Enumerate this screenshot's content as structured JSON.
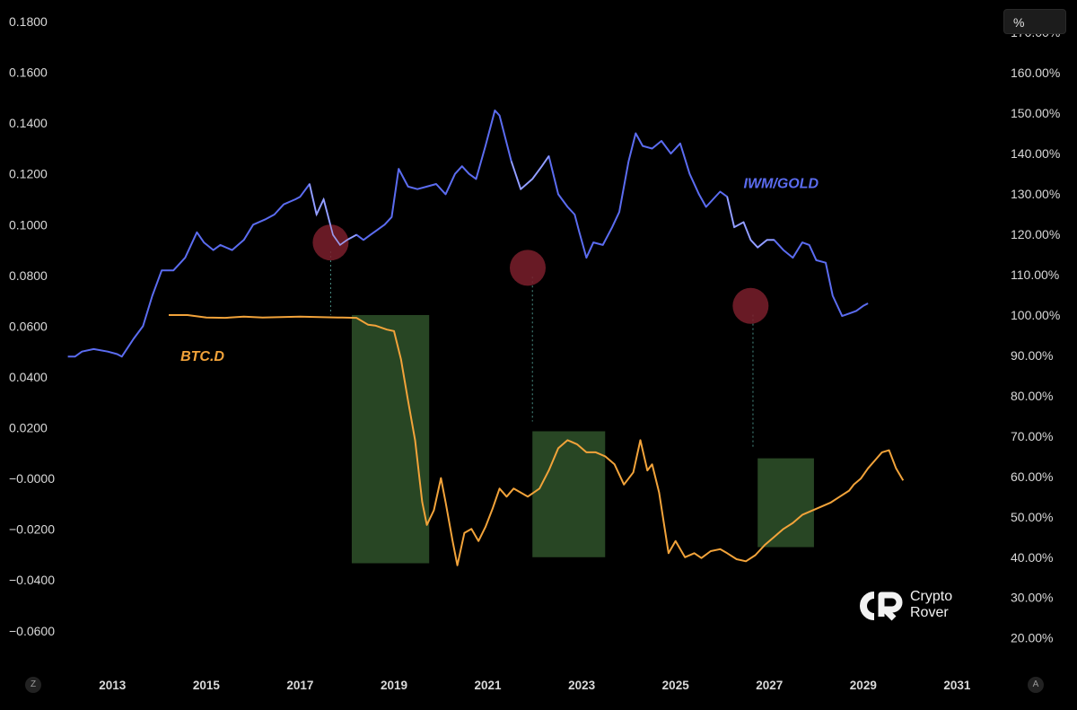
{
  "unit_button": {
    "label": "%"
  },
  "corner_buttons": {
    "left": "Z",
    "right": "A"
  },
  "watermark": {
    "line1": "Crypto",
    "line2": "Rover"
  },
  "colors": {
    "background": "#000000",
    "iwm_gold": "#5b6cf0",
    "btc_d": "#f2a33a",
    "highlight_zone": "#2a4a26",
    "marker_circle": "#7a1f2b",
    "guide_line": "#4a8f86"
  },
  "chart_data": {
    "type": "line",
    "grid": false,
    "x_axis": {
      "range": [
        2012.0,
        2031.7
      ],
      "ticks": [
        "2013",
        "2015",
        "2017",
        "2019",
        "2021",
        "2023",
        "2025",
        "2027",
        "2029",
        "2031"
      ]
    },
    "y_axis_left": {
      "range": [
        -0.0714,
        0.1878
      ],
      "ticks": [
        "0.1800",
        "0.1600",
        "0.1400",
        "0.1200",
        "0.1000",
        "0.0800",
        "0.0600",
        "0.0400",
        "0.0200",
        "−0.0000",
        "−0.0200",
        "−0.0400",
        "−0.0600"
      ]
    },
    "y_axis_right": {
      "unit": "%",
      "range": [
        14.6,
        177.6
      ],
      "ticks": [
        "170.00%",
        "160.00%",
        "150.00%",
        "140.00%",
        "130.00%",
        "120.00%",
        "110.00%",
        "100.00%",
        "90.00%",
        "80.00%",
        "70.00%",
        "60.00%",
        "50.00%",
        "40.00%",
        "30.00%",
        "20.00%"
      ]
    },
    "series": [
      {
        "name": "IWM/GOLD",
        "axis": "left",
        "points": [
          [
            2012.05,
            0.048
          ],
          [
            2012.2,
            0.048
          ],
          [
            2012.35,
            0.05
          ],
          [
            2012.6,
            0.051
          ],
          [
            2012.9,
            0.05
          ],
          [
            2013.1,
            0.049
          ],
          [
            2013.2,
            0.048
          ],
          [
            2013.45,
            0.055
          ],
          [
            2013.65,
            0.06
          ],
          [
            2013.85,
            0.072
          ],
          [
            2014.05,
            0.082
          ],
          [
            2014.3,
            0.082
          ],
          [
            2014.55,
            0.087
          ],
          [
            2014.8,
            0.097
          ],
          [
            2014.95,
            0.093
          ],
          [
            2015.15,
            0.09
          ],
          [
            2015.3,
            0.092
          ],
          [
            2015.55,
            0.09
          ],
          [
            2015.8,
            0.094
          ],
          [
            2016.0,
            0.1
          ],
          [
            2016.25,
            0.102
          ],
          [
            2016.45,
            0.104
          ],
          [
            2016.65,
            0.108
          ],
          [
            2016.9,
            0.11
          ],
          [
            2017.0,
            0.111
          ],
          [
            2017.2,
            0.116
          ],
          [
            2017.35,
            0.104
          ],
          [
            2017.5,
            0.11
          ],
          [
            2017.7,
            0.096
          ],
          [
            2017.85,
            0.092
          ],
          [
            2018.0,
            0.094
          ],
          [
            2018.2,
            0.096
          ],
          [
            2018.35,
            0.094
          ],
          [
            2018.5,
            0.096
          ],
          [
            2018.65,
            0.098
          ],
          [
            2018.8,
            0.1
          ],
          [
            2018.95,
            0.103
          ],
          [
            2019.1,
            0.122
          ],
          [
            2019.3,
            0.115
          ],
          [
            2019.5,
            0.114
          ],
          [
            2019.7,
            0.115
          ],
          [
            2019.9,
            0.116
          ],
          [
            2020.1,
            0.112
          ],
          [
            2020.3,
            0.12
          ],
          [
            2020.45,
            0.123
          ],
          [
            2020.6,
            0.12
          ],
          [
            2020.75,
            0.118
          ],
          [
            2020.95,
            0.131
          ],
          [
            2021.15,
            0.145
          ],
          [
            2021.25,
            0.143
          ],
          [
            2021.5,
            0.125
          ],
          [
            2021.7,
            0.114
          ],
          [
            2021.95,
            0.118
          ],
          [
            2022.15,
            0.123
          ],
          [
            2022.3,
            0.127
          ],
          [
            2022.5,
            0.112
          ],
          [
            2022.7,
            0.107
          ],
          [
            2022.85,
            0.104
          ],
          [
            2022.95,
            0.097
          ],
          [
            2023.1,
            0.087
          ],
          [
            2023.25,
            0.093
          ],
          [
            2023.45,
            0.092
          ],
          [
            2023.65,
            0.099
          ],
          [
            2023.8,
            0.105
          ],
          [
            2024.0,
            0.125
          ],
          [
            2024.15,
            0.136
          ],
          [
            2024.3,
            0.131
          ],
          [
            2024.5,
            0.13
          ],
          [
            2024.7,
            0.133
          ],
          [
            2024.9,
            0.128
          ],
          [
            2025.1,
            0.132
          ],
          [
            2025.3,
            0.12
          ],
          [
            2025.5,
            0.112
          ],
          [
            2025.65,
            0.107
          ],
          [
            2025.8,
            0.11
          ],
          [
            2025.95,
            0.113
          ],
          [
            2026.1,
            0.111
          ],
          [
            2026.25,
            0.099
          ],
          [
            2026.45,
            0.101
          ],
          [
            2026.6,
            0.094
          ],
          [
            2026.75,
            0.091
          ],
          [
            2026.95,
            0.094
          ],
          [
            2027.1,
            0.094
          ],
          [
            2027.3,
            0.09
          ],
          [
            2027.5,
            0.087
          ],
          [
            2027.7,
            0.093
          ],
          [
            2027.85,
            0.092
          ],
          [
            2028.0,
            0.086
          ],
          [
            2028.2,
            0.085
          ],
          [
            2028.35,
            0.072
          ],
          [
            2028.55,
            0.064
          ],
          [
            2028.7,
            0.065
          ],
          [
            2028.85,
            0.066
          ],
          [
            2029.0,
            0.068
          ],
          [
            2029.1,
            0.069
          ]
        ]
      },
      {
        "name": "BTC.D",
        "axis": "right",
        "points": [
          [
            2014.2,
            100.0
          ],
          [
            2014.6,
            100.0
          ],
          [
            2015.0,
            99.4
          ],
          [
            2015.4,
            99.3
          ],
          [
            2015.8,
            99.6
          ],
          [
            2016.2,
            99.4
          ],
          [
            2016.6,
            99.5
          ],
          [
            2017.0,
            99.6
          ],
          [
            2017.4,
            99.5
          ],
          [
            2017.8,
            99.4
          ],
          [
            2018.2,
            99.3
          ],
          [
            2018.45,
            97.6
          ],
          [
            2018.6,
            97.4
          ],
          [
            2018.85,
            96.4
          ],
          [
            2019.0,
            96.0
          ],
          [
            2019.15,
            89.0
          ],
          [
            2019.3,
            78.7
          ],
          [
            2019.45,
            69.0
          ],
          [
            2019.6,
            53.7
          ],
          [
            2019.7,
            48.0
          ],
          [
            2019.85,
            51.6
          ],
          [
            2020.0,
            59.6
          ],
          [
            2020.1,
            53.6
          ],
          [
            2020.25,
            44.0
          ],
          [
            2020.35,
            38.0
          ],
          [
            2020.5,
            46.0
          ],
          [
            2020.65,
            47.0
          ],
          [
            2020.8,
            44.0
          ],
          [
            2020.95,
            47.5
          ],
          [
            2021.1,
            52.0
          ],
          [
            2021.25,
            57.0
          ],
          [
            2021.4,
            55.0
          ],
          [
            2021.55,
            57.0
          ],
          [
            2021.7,
            56.0
          ],
          [
            2021.85,
            55.0
          ],
          [
            2022.1,
            57.0
          ],
          [
            2022.3,
            61.5
          ],
          [
            2022.5,
            67.0
          ],
          [
            2022.7,
            69.0
          ],
          [
            2022.9,
            68.0
          ],
          [
            2023.1,
            66.0
          ],
          [
            2023.3,
            66.0
          ],
          [
            2023.5,
            65.0
          ],
          [
            2023.7,
            63.0
          ],
          [
            2023.9,
            58.0
          ],
          [
            2024.1,
            61.0
          ],
          [
            2024.25,
            69.0
          ],
          [
            2024.4,
            61.5
          ],
          [
            2024.5,
            63.0
          ],
          [
            2024.65,
            56.0
          ],
          [
            2024.85,
            41.0
          ],
          [
            2025.0,
            44.0
          ],
          [
            2025.2,
            40.0
          ],
          [
            2025.4,
            41.0
          ],
          [
            2025.55,
            39.8
          ],
          [
            2025.75,
            41.5
          ],
          [
            2025.95,
            42.0
          ],
          [
            2026.1,
            41.0
          ],
          [
            2026.3,
            39.5
          ],
          [
            2026.5,
            39.0
          ],
          [
            2026.7,
            40.5
          ],
          [
            2026.9,
            43.0
          ],
          [
            2027.1,
            45.0
          ],
          [
            2027.3,
            47.0
          ],
          [
            2027.5,
            48.5
          ],
          [
            2027.7,
            50.5
          ],
          [
            2027.9,
            51.5
          ],
          [
            2028.1,
            52.5
          ],
          [
            2028.3,
            53.5
          ],
          [
            2028.5,
            55.0
          ],
          [
            2028.7,
            56.5
          ],
          [
            2028.8,
            58.0
          ],
          [
            2028.95,
            59.5
          ],
          [
            2029.1,
            62.0
          ],
          [
            2029.25,
            64.0
          ],
          [
            2029.4,
            66.0
          ],
          [
            2029.55,
            66.5
          ],
          [
            2029.7,
            62.0
          ],
          [
            2029.85,
            59.0
          ]
        ]
      }
    ],
    "highlight_zones": [
      {
        "x": [
          2018.1,
          2019.75
        ],
        "y_pct": [
          38.5,
          100.0
        ]
      },
      {
        "x": [
          2021.95,
          2023.5
        ],
        "y_pct": [
          40.0,
          71.2
        ]
      },
      {
        "x": [
          2026.75,
          2027.95
        ],
        "y_pct": [
          42.5,
          64.5
        ]
      }
    ],
    "markers": [
      {
        "x": 2017.65,
        "y": 0.093
      },
      {
        "x": 2021.85,
        "y": 0.083
      },
      {
        "x": 2026.6,
        "y": 0.068
      }
    ],
    "guide_lines": [
      {
        "x": 2017.65,
        "y_from": 0.0645,
        "y_to": 0.0895
      },
      {
        "x": 2021.95,
        "y_from": 0.0225,
        "y_to": 0.0795
      },
      {
        "x": 2026.65,
        "y_from": 0.0115,
        "y_to": 0.0645
      }
    ]
  }
}
